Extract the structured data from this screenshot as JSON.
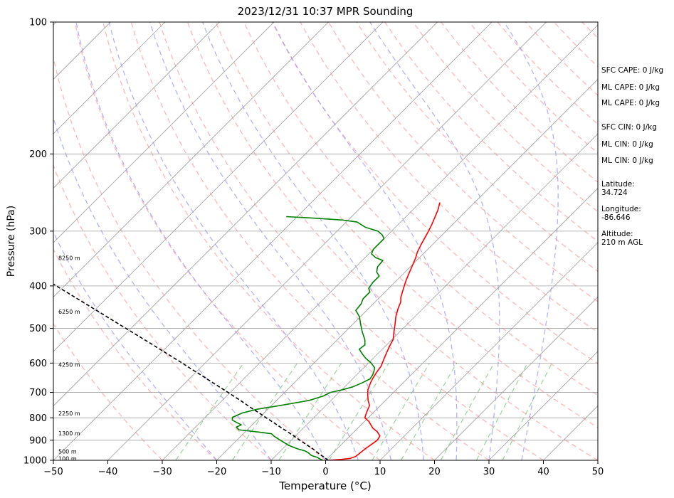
{
  "chart_data": {
    "type": "line",
    "title": "2023/12/31 10:37 MPR Sounding",
    "xlabel": "Temperature (°C)",
    "ylabel": "Pressure (hPa)",
    "x_ticks": [
      "−50",
      "−40",
      "−30",
      "−20",
      "−10",
      "0",
      "10",
      "20",
      "30",
      "40",
      "50"
    ],
    "y_ticks": [
      {
        "p": 100,
        "label": "100"
      },
      {
        "p": 200,
        "label": "200"
      },
      {
        "p": 300,
        "label": "300"
      },
      {
        "p": 400,
        "label": "400"
      },
      {
        "p": 500,
        "label": "500"
      },
      {
        "p": 600,
        "label": "600"
      },
      {
        "p": 700,
        "label": "700"
      },
      {
        "p": 800,
        "label": "800"
      },
      {
        "p": 900,
        "label": "900"
      },
      {
        "p": 1000,
        "label": "1000"
      }
    ],
    "xlim": [
      -50,
      50
    ],
    "ylim": [
      1000,
      100
    ],
    "y_scale": "log",
    "skew": "temperature lines skewed to the right",
    "grid": true,
    "height_labels": [
      {
        "p": 990,
        "label": "100 m"
      },
      {
        "p": 955,
        "label": "500 m"
      },
      {
        "p": 868,
        "label": "1300 m"
      },
      {
        "p": 782,
        "label": "2250 m"
      },
      {
        "p": 605,
        "label": "4250 m"
      },
      {
        "p": 458,
        "label": "6250 m"
      },
      {
        "p": 345,
        "label": "8250 m"
      }
    ],
    "series": [
      {
        "color": "#ff0000",
        "points": [
          [
            0.5,
            1000
          ],
          [
            2.8,
            995
          ],
          [
            4.2,
            990
          ],
          [
            4.8,
            980
          ],
          [
            5.0,
            960
          ],
          [
            5.2,
            940
          ],
          [
            5.5,
            920
          ],
          [
            5.8,
            900
          ],
          [
            5.5,
            880
          ],
          [
            4.2,
            860
          ],
          [
            2.8,
            845
          ],
          [
            1.8,
            830
          ],
          [
            0.8,
            815
          ],
          [
            -0.6,
            800
          ],
          [
            -1.2,
            780
          ],
          [
            -2.0,
            750
          ],
          [
            -3.2,
            730
          ],
          [
            -4.5,
            705
          ],
          [
            -5.2,
            690
          ],
          [
            -6.0,
            665
          ],
          [
            -6.4,
            650
          ],
          [
            -6.8,
            630
          ],
          [
            -7.1,
            610
          ],
          [
            -7.8,
            590
          ],
          [
            -8.5,
            570
          ],
          [
            -9.2,
            550
          ],
          [
            -9.8,
            530
          ],
          [
            -11.0,
            510
          ],
          [
            -12.2,
            490
          ],
          [
            -13.5,
            470
          ],
          [
            -14.6,
            450
          ],
          [
            -15.3,
            435
          ],
          [
            -16.1,
            425
          ],
          [
            -17.0,
            410
          ],
          [
            -17.6,
            400
          ],
          [
            -18.2,
            390
          ],
          [
            -19.0,
            375
          ],
          [
            -19.8,
            360
          ],
          [
            -20.6,
            346
          ],
          [
            -21.4,
            335
          ],
          [
            -22.1,
            322
          ],
          [
            -22.7,
            310
          ],
          [
            -23.2,
            300
          ],
          [
            -23.8,
            290
          ],
          [
            -24.5,
            280
          ],
          [
            -25.4,
            268
          ],
          [
            -26.4,
            258
          ]
        ]
      },
      {
        "color": "#008000",
        "points": [
          [
            -0.5,
            1000
          ],
          [
            -1.3,
            993
          ],
          [
            -2.0,
            985
          ],
          [
            -3.5,
            975
          ],
          [
            -4.5,
            962
          ],
          [
            -5.5,
            952
          ],
          [
            -7.2,
            942
          ],
          [
            -9.5,
            925
          ],
          [
            -12.0,
            900
          ],
          [
            -14.0,
            880
          ],
          [
            -14.8,
            870
          ],
          [
            -17.5,
            862
          ],
          [
            -21.5,
            852
          ],
          [
            -22.5,
            840
          ],
          [
            -22.0,
            830
          ],
          [
            -23.0,
            822
          ],
          [
            -24.5,
            810
          ],
          [
            -25.0,
            798
          ],
          [
            -24.0,
            780
          ],
          [
            -22.0,
            765
          ],
          [
            -18.0,
            748
          ],
          [
            -14.0,
            730
          ],
          [
            -12.2,
            713
          ],
          [
            -11.6,
            700
          ],
          [
            -9.8,
            690
          ],
          [
            -8.5,
            680
          ],
          [
            -7.6,
            667
          ],
          [
            -6.8,
            652
          ],
          [
            -7.0,
            640
          ],
          [
            -7.4,
            628
          ],
          [
            -8.0,
            615
          ],
          [
            -9.5,
            600
          ],
          [
            -11.5,
            584
          ],
          [
            -13.0,
            570
          ],
          [
            -14.2,
            558
          ],
          [
            -14.0,
            545
          ],
          [
            -15.0,
            530
          ],
          [
            -16.8,
            510
          ],
          [
            -18.5,
            490
          ],
          [
            -20.2,
            470
          ],
          [
            -22.0,
            455
          ],
          [
            -22.2,
            440
          ],
          [
            -22.8,
            428
          ],
          [
            -22.8,
            413
          ],
          [
            -23.7,
            405
          ],
          [
            -24.0,
            393
          ],
          [
            -24.0,
            380
          ],
          [
            -25.2,
            372
          ],
          [
            -26.0,
            362
          ],
          [
            -26.2,
            350
          ],
          [
            -28.0,
            345
          ],
          [
            -29.5,
            338
          ],
          [
            -30.0,
            330
          ],
          [
            -30.0,
            322
          ],
          [
            -30.0,
            312
          ],
          [
            -31.0,
            306
          ],
          [
            -32.5,
            300
          ],
          [
            -35.5,
            294
          ],
          [
            -38.0,
            286
          ],
          [
            -41.0,
            283
          ],
          [
            -47.0,
            280
          ],
          [
            -52.0,
            278
          ]
        ]
      },
      {
        "color": "#000000",
        "dash": "5,3",
        "points": [
          [
            0.5,
            1000
          ],
          [
            -1.2,
            980
          ],
          [
            -2.9,
            960
          ],
          [
            -4.6,
            940
          ],
          [
            -6.5,
            920
          ],
          [
            -8.4,
            900
          ],
          [
            -10.3,
            880
          ],
          [
            -12.3,
            860
          ],
          [
            -14.4,
            840
          ],
          [
            -16.5,
            820
          ],
          [
            -18.7,
            800
          ],
          [
            -20.9,
            780
          ],
          [
            -23.2,
            760
          ],
          [
            -25.5,
            740
          ],
          [
            -27.9,
            720
          ],
          [
            -30.4,
            700
          ],
          [
            -33.0,
            680
          ],
          [
            -35.7,
            660
          ],
          [
            -38.4,
            640
          ],
          [
            -41.3,
            620
          ],
          [
            -44.2,
            600
          ],
          [
            -47.3,
            580
          ],
          [
            -50.5,
            560
          ],
          [
            -53.8,
            540
          ],
          [
            -57.3,
            520
          ],
          [
            -60.9,
            500
          ],
          [
            -64.7,
            480
          ],
          [
            -68.6,
            460
          ],
          [
            -72.7,
            440
          ],
          [
            -77.0,
            420
          ],
          [
            -81.5,
            400
          ],
          [
            -86.2,
            380
          ],
          [
            -91.2,
            360
          ],
          [
            -96.4,
            340
          ],
          [
            -101.9,
            320
          ],
          [
            -107.7,
            300
          ],
          [
            -113.8,
            280
          ]
        ]
      }
    ]
  },
  "sidebar": [
    "SFC CAPE: 0 J/kg",
    "ML CAPE: 0 J/kg",
    "ML CAPE: 0 J/kg",
    "SFC CIN: 0 J/kg",
    "ML CIN: 0 J/kg",
    "ML CIN: 0 J/kg",
    "Latitude:",
    "34.724",
    "Longitude:",
    "-86.646",
    "Altitude:",
    "210 m AGL"
  ],
  "colors": {
    "temperature": "#ff0000",
    "dewpoint": "#008000",
    "parcel": "#000000",
    "dry_adiabat": "#ff9999",
    "moist_adiabat": "#9999ff",
    "mixing_ratio": "#66bb66",
    "isotherm": "#a0a0a0"
  }
}
